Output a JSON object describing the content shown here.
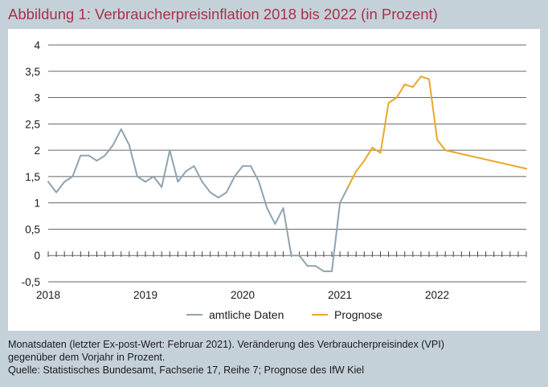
{
  "title": "Abbildung 1: Verbraucherpreisinflation 2018 bis 2022 (in Prozent)",
  "footnote": {
    "line1": "Monatsdaten (letzter Ex-post-Wert: Februar 2021). Veränderung des Verbraucherpreisindex (VPI)",
    "line2": "gegenüber dem Vorjahr in Prozent.",
    "line3": "Quelle: Statistisches Bundesamt, Fachserie 17, Reihe 7; Prognose des IfW Kiel"
  },
  "chart_data": {
    "type": "line",
    "title": "Abbildung 1: Verbraucherpreisinflation 2018 bis 2022 (in Prozent)",
    "xlabel": "",
    "ylabel": "",
    "ylim": [
      -0.5,
      4
    ],
    "yticks": [
      -0.5,
      0,
      0.5,
      1,
      1.5,
      2,
      2.5,
      3,
      3.5,
      4
    ],
    "ytick_labels": [
      "-0,5",
      "0",
      "0,5",
      "1",
      "1,5",
      "2",
      "2,5",
      "3",
      "3,5",
      "4"
    ],
    "x_unit": "month",
    "x_start": "2018-01",
    "x_months": 60,
    "xtick_labels": [
      "2018",
      "2019",
      "2020",
      "2021",
      "2022"
    ],
    "grid": true,
    "legend_position": "bottom",
    "series": [
      {
        "name": "amtliche Daten",
        "color": "#8fa3b0",
        "x": [
          "2018-01",
          "2018-02",
          "2018-03",
          "2018-04",
          "2018-05",
          "2018-06",
          "2018-07",
          "2018-08",
          "2018-09",
          "2018-10",
          "2018-11",
          "2018-12",
          "2019-01",
          "2019-02",
          "2019-03",
          "2019-04",
          "2019-05",
          "2019-06",
          "2019-07",
          "2019-08",
          "2019-09",
          "2019-10",
          "2019-11",
          "2019-12",
          "2020-01",
          "2020-02",
          "2020-03",
          "2020-04",
          "2020-05",
          "2020-06",
          "2020-07",
          "2020-08",
          "2020-09",
          "2020-10",
          "2020-11",
          "2020-12",
          "2021-01",
          "2021-02"
        ],
        "values": [
          1.4,
          1.2,
          1.4,
          1.5,
          1.9,
          1.9,
          1.8,
          1.9,
          2.1,
          2.4,
          2.1,
          1.5,
          1.4,
          1.5,
          1.3,
          2.0,
          1.4,
          1.6,
          1.7,
          1.4,
          1.2,
          1.1,
          1.2,
          1.5,
          1.7,
          1.7,
          1.4,
          0.9,
          0.6,
          0.9,
          0.0,
          0.0,
          -0.2,
          -0.2,
          -0.3,
          -0.3,
          1.0,
          1.3
        ]
      },
      {
        "name": "Prognose",
        "color": "#e8a72c",
        "x": [
          "2021-02",
          "2021-03",
          "2021-04",
          "2021-05",
          "2021-06",
          "2021-07",
          "2021-08",
          "2021-09",
          "2021-10",
          "2021-11",
          "2021-12",
          "2022-01",
          "2022-02",
          "2022-12"
        ],
        "values": [
          1.3,
          1.6,
          1.8,
          2.05,
          1.95,
          2.9,
          3.0,
          3.25,
          3.2,
          3.4,
          3.35,
          2.2,
          2.0,
          1.65
        ]
      }
    ]
  }
}
